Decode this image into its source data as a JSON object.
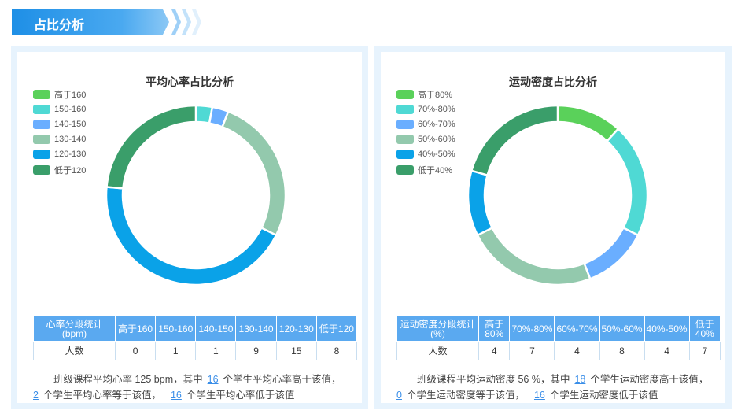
{
  "section": {
    "title": "占比分析"
  },
  "heart_panel": {
    "title": "平均心率占比分析",
    "legend": [
      {
        "label": "高于160",
        "color": "#5ad15a"
      },
      {
        "label": "150-160",
        "color": "#4fd9d4"
      },
      {
        "label": "140-150",
        "color": "#6aaeff"
      },
      {
        "label": "130-140",
        "color": "#93c9ad"
      },
      {
        "label": "120-130",
        "color": "#0aa2e8"
      },
      {
        "label": "低于120",
        "color": "#3a9e6a"
      }
    ],
    "table": {
      "header_label": "心率分段统计\n(bpm)",
      "columns": [
        "高于160",
        "150-160",
        "140-150",
        "130-140",
        "120-130",
        "低于120"
      ],
      "row_label": "人数",
      "counts": [
        "0",
        "1",
        "1",
        "9",
        "15",
        "8"
      ]
    },
    "summary": {
      "part1": "班级课程平均心率 125 bpm，其中",
      "n_above": "16",
      "part2": "个学生平均心率高于该值，",
      "n_equal": "2",
      "part3": "个学生平均心率等于该值，",
      "n_below": "16",
      "part4": "个学生平均心率低于该值"
    }
  },
  "density_panel": {
    "title": "运动密度占比分析",
    "legend": [
      {
        "label": "高于80%",
        "color": "#5ad15a"
      },
      {
        "label": "70%-80%",
        "color": "#4fd9d4"
      },
      {
        "label": "60%-70%",
        "color": "#6aaeff"
      },
      {
        "label": "50%-60%",
        "color": "#93c9ad"
      },
      {
        "label": "40%-50%",
        "color": "#0aa2e8"
      },
      {
        "label": "低于40%",
        "color": "#3a9e6a"
      }
    ],
    "table": {
      "header_label": "运动密度分段统计\n(%)",
      "columns": [
        "高于80%",
        "70%-80%",
        "60%-70%",
        "50%-60%",
        "40%-50%",
        "低于40%"
      ],
      "row_label": "人数",
      "counts": [
        "4",
        "7",
        "4",
        "8",
        "4",
        "7"
      ]
    },
    "summary": {
      "part1": "班级课程平均运动密度 56 %，其中",
      "n_above": "18",
      "part2": "个学生运动密度高于该值，",
      "n_equal": "0",
      "part3": "个学生运动密度等于该值，",
      "n_below": "16",
      "part4": "个学生运动密度低于该值"
    }
  },
  "chart_data": [
    {
      "type": "pie",
      "title": "平均心率占比分析",
      "categories": [
        "高于160",
        "150-160",
        "140-150",
        "130-140",
        "120-130",
        "低于120"
      ],
      "values": [
        0,
        1,
        1,
        9,
        15,
        8
      ],
      "colors": [
        "#5ad15a",
        "#4fd9d4",
        "#6aaeff",
        "#93c9ad",
        "#0aa2e8",
        "#3a9e6a"
      ],
      "legend": "top-left"
    },
    {
      "type": "pie",
      "title": "运动密度占比分析",
      "categories": [
        "高于80%",
        "70%-80%",
        "60%-70%",
        "50%-60%",
        "40%-50%",
        "低于40%"
      ],
      "values": [
        4,
        7,
        4,
        8,
        4,
        7
      ],
      "colors": [
        "#5ad15a",
        "#4fd9d4",
        "#6aaeff",
        "#93c9ad",
        "#0aa2e8",
        "#3a9e6a"
      ],
      "legend": "top-left"
    }
  ]
}
